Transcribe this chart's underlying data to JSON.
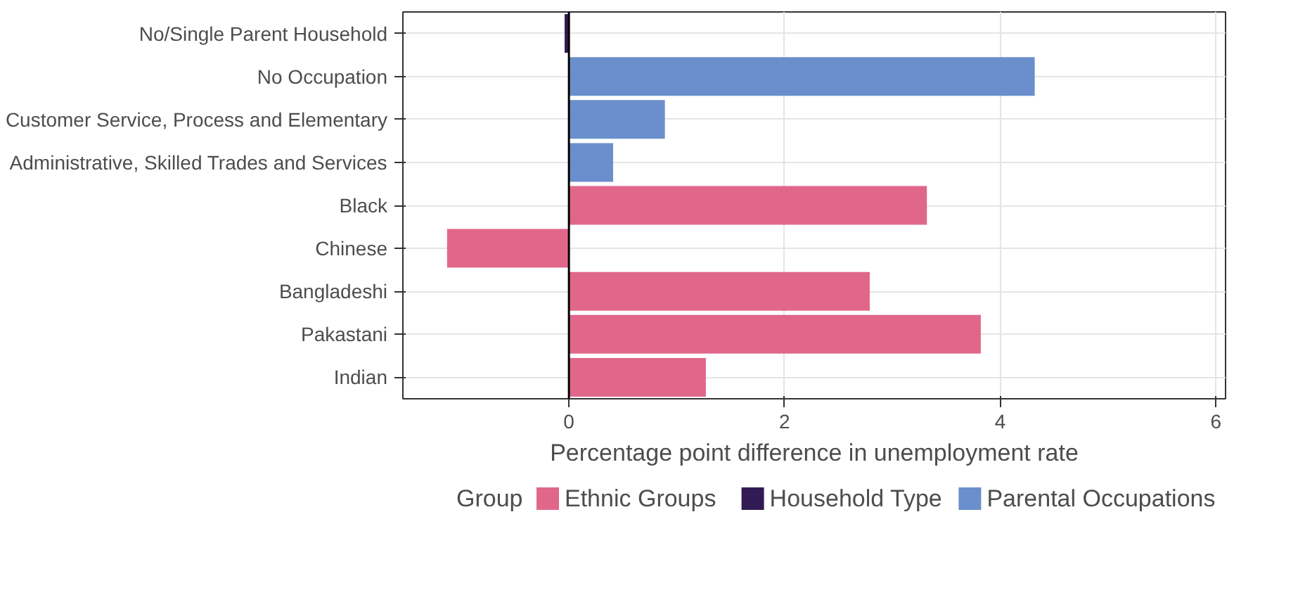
{
  "chart_data": {
    "type": "bar",
    "orientation": "horizontal",
    "xlabel": "Percentage point difference in unemployment rate",
    "legend_title": "Group",
    "categories": [
      "No/Single Parent Household",
      "No Occupation",
      "Customer Service, Process and Elementary",
      "Administrative, Skilled Trades and Services",
      "Black",
      "Chinese",
      "Bangladeshi",
      "Pakastani",
      "Indian"
    ],
    "series": [
      {
        "name": "Ethnic Groups",
        "color": "#e0678a",
        "values": [
          null,
          null,
          null,
          null,
          3.32,
          -1.13,
          2.79,
          3.82,
          1.27
        ]
      },
      {
        "name": "Household Type",
        "color": "#321b54",
        "values": [
          -0.04,
          null,
          null,
          null,
          null,
          null,
          null,
          null,
          null
        ]
      },
      {
        "name": "Parental Occupations",
        "color": "#6a8fcc",
        "values": [
          null,
          4.32,
          0.89,
          0.41,
          null,
          null,
          null,
          null,
          null
        ]
      }
    ],
    "xlim": [
      -1.54,
      6.09
    ],
    "xticks": [
      0,
      2,
      4,
      6
    ],
    "ref_lines": [
      {
        "axis": "x",
        "value": 0,
        "color": "#000000"
      }
    ],
    "grid": true,
    "legend": "bottom"
  }
}
